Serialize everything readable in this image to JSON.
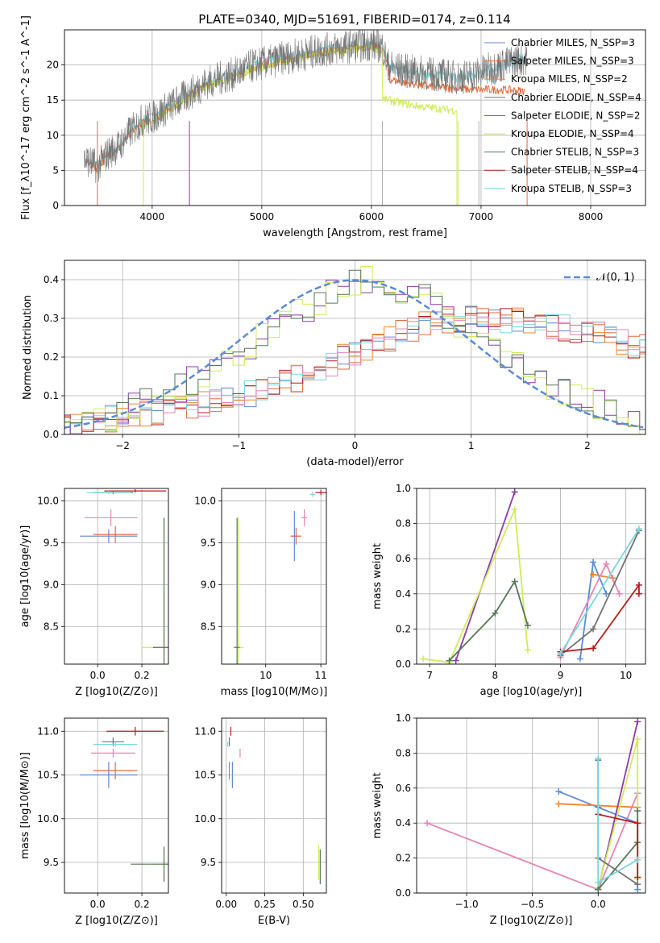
{
  "title": "PLATE=0340, MJD=51691, FIBERID=0174, z=0.114",
  "models": [
    {
      "label": "Chabrier MILES, N_SSP=3",
      "color": "#5b8ad6"
    },
    {
      "label": "Salpeter MILES, N_SSP=3",
      "color": "#e06b3a"
    },
    {
      "label": "Kroupa MILES, N_SSP=2",
      "color": "#f0862a"
    },
    {
      "label": "Chabrier ELODIE, N_SSP=4",
      "color": "#727272"
    },
    {
      "label": "Salpeter ELODIE, N_SSP=2",
      "color": "#8e3aa8"
    },
    {
      "label": "Kroupa ELODIE, N_SSP=4",
      "color": "#cfec57"
    },
    {
      "label": "Chabrier STELIB, N_SSP=3",
      "color": "#55775a"
    },
    {
      "label": "Salpeter STELIB, N_SSP=4",
      "color": "#b71c1c"
    },
    {
      "label": "Kroupa STELIB, N_SSP=3",
      "color": "#79d6de"
    }
  ],
  "extra_color_pink": "#e585b5",
  "chart_data": [
    {
      "id": "spectrum",
      "type": "line",
      "xlabel": "wavelength [Angstrom, rest frame]",
      "ylabel": "Flux [f_λ10^-17 erg cm^-2 s^-1 A^-1]",
      "xlim": [
        3200,
        8500
      ],
      "ylim": [
        0,
        25
      ],
      "xticks": [
        4000,
        5000,
        6000,
        7000,
        8000
      ],
      "yticks": [
        0,
        5,
        10,
        15,
        20
      ],
      "grid": true,
      "legend": "upper right",
      "observed_continuum": {
        "x": [
          3400,
          3500,
          3600,
          3700,
          3800,
          3900,
          4000,
          4100,
          4200,
          4300,
          4400,
          4500,
          4600,
          4700,
          4800,
          4900,
          5000,
          5100,
          5200,
          5300,
          5400,
          5500,
          5600,
          5700,
          5800,
          5900,
          6000,
          6100,
          6150,
          6200,
          6300,
          6400,
          6500,
          6600,
          6700,
          6800,
          6900,
          7000,
          7100,
          7200,
          7300,
          7400
        ],
        "y": [
          6.5,
          5.5,
          7.5,
          8.5,
          10.5,
          12.0,
          12.5,
          13.5,
          14.5,
          15.5,
          16.5,
          17.5,
          18.0,
          18.5,
          19.0,
          19.8,
          20.2,
          20.5,
          21.0,
          21.3,
          21.6,
          22.0,
          22.2,
          22.4,
          22.6,
          22.8,
          23.0,
          22.6,
          20.0,
          19.5,
          19.2,
          19.0,
          18.8,
          18.6,
          18.4,
          18.2,
          18.5,
          19.0,
          19.5,
          20.0,
          20.5,
          21.0
        ]
      },
      "model_continuum_red": {
        "x": [
          6150,
          6300,
          6500,
          6700,
          6900,
          7100,
          7300,
          7400
        ],
        "y": [
          18.0,
          17.5,
          17.0,
          16.8,
          16.5,
          16.5,
          16.4,
          16.3
        ]
      },
      "model_continuum_elodie": {
        "x": [
          6100,
          6200,
          6400,
          6600,
          6800
        ],
        "y": [
          15.2,
          14.8,
          14.2,
          13.8,
          13.5
        ]
      }
    },
    {
      "id": "residual-hist",
      "type": "line",
      "xlabel": "(data-model)/error",
      "ylabel": "Normed distribution",
      "xlim": [
        -2.5,
        2.5
      ],
      "ylim": [
        0,
        0.45
      ],
      "xticks": [
        -2,
        -1,
        0,
        1,
        2
      ],
      "yticks": [
        0.0,
        0.1,
        0.2,
        0.3,
        0.4
      ],
      "grid": true,
      "legend_label": "𝒩(0, 1)",
      "legend": "upper right",
      "gaussian": {
        "mean": 0,
        "sigma": 1
      },
      "narrow_hist_centers": [
        -2.5,
        -2.0,
        -1.5,
        -1.0,
        -0.5,
        0.0,
        0.5,
        1.0,
        1.5,
        2.0,
        2.5
      ],
      "narrow_hist_values": [
        0.02,
        0.06,
        0.13,
        0.22,
        0.32,
        0.4,
        0.36,
        0.26,
        0.14,
        0.08,
        0.03
      ],
      "wide_hist_centers": [
        -2.5,
        -2.0,
        -1.5,
        -1.0,
        -0.5,
        0.0,
        0.5,
        1.0,
        1.5,
        2.0,
        2.5
      ],
      "wide_hist_values": [
        0.02,
        0.05,
        0.07,
        0.1,
        0.15,
        0.22,
        0.28,
        0.3,
        0.29,
        0.26,
        0.22
      ]
    },
    {
      "id": "age-vs-Z",
      "type": "scatter",
      "xlabel": "Z [log10(Z/Z⊙)]",
      "ylabel": "age  [log10(age/yr)]",
      "xlim": [
        -0.15,
        0.32
      ],
      "ylim": [
        8.05,
        10.15
      ],
      "xticks": [
        0.0,
        0.2
      ],
      "yticks": [
        8.5,
        9.0,
        9.5,
        10.0
      ],
      "points": [
        {
          "model": 0,
          "x": 0.05,
          "y": 9.58,
          "xerr": 0.13,
          "yerr": 0.08
        },
        {
          "model": 1,
          "x": 0.08,
          "y": 9.6,
          "xerr": 0.1,
          "yerr": 0.1
        },
        {
          "model": 3,
          "x": 0.07,
          "y": 10.1,
          "xerr": 0.09,
          "yerr": 0.02
        },
        {
          "model": 7,
          "x": 0.17,
          "y": 10.12,
          "xerr": 0.14,
          "yerr": 0.02
        },
        {
          "model": 8,
          "x": 0.05,
          "y": 10.1,
          "xerr": 0.1,
          "yerr": 0.02
        },
        {
          "model": 5,
          "x": 0.3,
          "y": 8.25,
          "xerr": 0.1,
          "yerr": 1.55
        },
        {
          "model": 6,
          "x": 0.3,
          "y": 8.25,
          "xerr": 0.05,
          "yerr": 1.55
        },
        {
          "model": -1,
          "x": 0.06,
          "y": 9.8,
          "xerr": 0.12,
          "yerr": 0.1
        }
      ]
    },
    {
      "id": "age-vs-mass",
      "type": "scatter",
      "xlabel": "mass [log10(M/M⊙)]",
      "ylabel": "",
      "xlim": [
        9.2,
        11.1
      ],
      "ylim": [
        8.05,
        10.15
      ],
      "xticks": [
        10,
        11
      ],
      "yticks": [
        8.5,
        9.0,
        9.5,
        10.0
      ],
      "points": [
        {
          "model": 0,
          "x": 10.52,
          "y": 9.58,
          "xerr": 0.05,
          "yerr": 0.3
        },
        {
          "model": 1,
          "x": 10.55,
          "y": 9.58,
          "xerr": 0.1,
          "yerr": 0.1
        },
        {
          "model": 7,
          "x": 11.0,
          "y": 10.1,
          "xerr": 0.1,
          "yerr": 0.03
        },
        {
          "model": 8,
          "x": 10.85,
          "y": 10.08,
          "xerr": 0.05,
          "yerr": 0.03
        },
        {
          "model": -1,
          "x": 10.7,
          "y": 9.8,
          "xerr": 0.05,
          "yerr": 0.1
        },
        {
          "model": 5,
          "x": 9.5,
          "y": 8.25,
          "xerr": 0.1,
          "yerr": 1.55
        },
        {
          "model": 6,
          "x": 9.48,
          "y": 8.25,
          "xerr": 0.05,
          "yerr": 1.55
        }
      ]
    },
    {
      "id": "mass-weight-vs-age",
      "type": "line",
      "xlabel": "age  [log10(age/yr)]",
      "ylabel": "mass weight",
      "xlim": [
        6.8,
        10.3
      ],
      "ylim": [
        0,
        1
      ],
      "xticks": [
        7,
        8,
        9,
        10
      ],
      "yticks": [
        0.0,
        0.2,
        0.4,
        0.6,
        0.8,
        1.0
      ],
      "series": [
        {
          "model": 4,
          "x": [
            7.4,
            8.3
          ],
          "y": [
            0.02,
            0.98
          ]
        },
        {
          "model": 5,
          "x": [
            6.9,
            7.3,
            8.3,
            8.5
          ],
          "y": [
            0.03,
            0.01,
            0.88,
            0.08
          ]
        },
        {
          "model": 6,
          "x": [
            7.3,
            8.0,
            8.3,
            8.5
          ],
          "y": [
            0.02,
            0.29,
            0.47,
            0.22
          ]
        },
        {
          "model": 0,
          "x": [
            9.3,
            9.5,
            9.7
          ],
          "y": [
            0.03,
            0.58,
            0.4
          ]
        },
        {
          "model": 2,
          "x": [
            9.5,
            9.8
          ],
          "y": [
            0.51,
            0.49
          ]
        },
        {
          "model": -1,
          "x": [
            9.0,
            9.7,
            9.9
          ],
          "y": [
            0.04,
            0.57,
            0.4
          ]
        },
        {
          "model": 3,
          "x": [
            9.0,
            9.5,
            10.2
          ],
          "y": [
            0.05,
            0.2,
            0.76
          ]
        },
        {
          "model": 7,
          "x": [
            9.0,
            9.5,
            10.2,
            10.2
          ],
          "y": [
            0.07,
            0.09,
            0.45,
            0.4
          ]
        },
        {
          "model": 8,
          "x": [
            9.0,
            10.2
          ],
          "y": [
            0.06,
            0.77
          ]
        }
      ]
    },
    {
      "id": "mass-vs-Z",
      "type": "scatter",
      "xlabel": "Z [log10(Z/Z⊙)]",
      "ylabel": "mass [log10(M/M⊙)]",
      "xlim": [
        -0.15,
        0.32
      ],
      "ylim": [
        9.15,
        11.15
      ],
      "xticks": [
        0.0,
        0.2
      ],
      "yticks": [
        9.5,
        10.0,
        10.5,
        11.0
      ],
      "points": [
        {
          "model": 0,
          "x": 0.05,
          "y": 10.5,
          "xerr": 0.13,
          "yerr": 0.15
        },
        {
          "model": 1,
          "x": 0.08,
          "y": 10.55,
          "xerr": 0.1,
          "yerr": 0.1
        },
        {
          "model": 3,
          "x": 0.07,
          "y": 10.88,
          "xerr": 0.05,
          "yerr": 0.05
        },
        {
          "model": 7,
          "x": 0.17,
          "y": 11.0,
          "xerr": 0.13,
          "yerr": 0.05
        },
        {
          "model": 8,
          "x": 0.08,
          "y": 10.85,
          "xerr": 0.1,
          "yerr": 0.03
        },
        {
          "model": -1,
          "x": 0.07,
          "y": 10.75,
          "xerr": 0.1,
          "yerr": 0.05
        },
        {
          "model": 5,
          "x": 0.3,
          "y": 9.48,
          "xerr": 0.05,
          "yerr": 0.18
        },
        {
          "model": 6,
          "x": 0.3,
          "y": 9.48,
          "xerr": 0.15,
          "yerr": 0.2
        }
      ]
    },
    {
      "id": "mass-vs-ebv",
      "type": "scatter",
      "xlabel": "E(B-V)",
      "ylabel": "",
      "xlim": [
        -0.03,
        0.65
      ],
      "ylim": [
        9.15,
        11.15
      ],
      "xticks": [
        0.0,
        0.25,
        0.5
      ],
      "yticks": [
        9.5,
        10.0,
        10.5,
        11.0
      ],
      "points": [
        {
          "model": 0,
          "x": 0.04,
          "y": 10.5,
          "xerr": 0.0,
          "yerr": 0.15
        },
        {
          "model": 1,
          "x": 0.02,
          "y": 10.55,
          "xerr": 0.0,
          "yerr": 0.1
        },
        {
          "model": 3,
          "x": 0.02,
          "y": 10.88,
          "xerr": 0.0,
          "yerr": 0.05
        },
        {
          "model": 7,
          "x": 0.03,
          "y": 11.0,
          "xerr": 0.0,
          "yerr": 0.05
        },
        {
          "model": 8,
          "x": 0.01,
          "y": 10.85,
          "xerr": 0.0,
          "yerr": 0.03
        },
        {
          "model": -1,
          "x": 0.09,
          "y": 10.75,
          "xerr": 0.0,
          "yerr": 0.05
        },
        {
          "model": 5,
          "x": 0.6,
          "y": 9.5,
          "xerr": 0.0,
          "yerr": 0.2
        },
        {
          "model": 6,
          "x": 0.61,
          "y": 9.45,
          "xerr": 0.0,
          "yerr": 0.2
        }
      ]
    },
    {
      "id": "mass-weight-vs-Z",
      "type": "line",
      "xlabel": "Z [log10(Z/Z⊙)]",
      "ylabel": "mass weight",
      "xlim": [
        -1.38,
        0.36
      ],
      "ylim": [
        0,
        1
      ],
      "xticks": [
        -1.0,
        -0.5,
        0.0
      ],
      "yticks": [
        0.0,
        0.2,
        0.4,
        0.6,
        0.8,
        1.0
      ],
      "series": [
        {
          "model": -1,
          "x": [
            -1.3,
            0.0,
            0.3
          ],
          "y": [
            0.4,
            0.02,
            0.57
          ]
        },
        {
          "model": 0,
          "x": [
            -0.3,
            0.0,
            0.3,
            0.3
          ],
          "y": [
            0.58,
            0.49,
            0.4,
            0.02
          ]
        },
        {
          "model": 2,
          "x": [
            -0.3,
            0.3
          ],
          "y": [
            0.51,
            0.49
          ]
        },
        {
          "model": 4,
          "x": [
            0.0,
            0.3
          ],
          "y": [
            0.02,
            0.98
          ]
        },
        {
          "model": 5,
          "x": [
            0.0,
            0.3,
            0.3
          ],
          "y": [
            0.03,
            0.88,
            0.08
          ]
        },
        {
          "model": 6,
          "x": [
            0.0,
            0.3,
            0.3
          ],
          "y": [
            0.02,
            0.29,
            0.47
          ]
        },
        {
          "model": 3,
          "x": [
            0.0,
            0.0,
            0.3
          ],
          "y": [
            0.76,
            0.2,
            0.05
          ]
        },
        {
          "model": 7,
          "x": [
            0.0,
            0.3,
            0.3
          ],
          "y": [
            0.45,
            0.4,
            0.09
          ]
        },
        {
          "model": 8,
          "x": [
            0.0,
            0.0,
            0.3
          ],
          "y": [
            0.77,
            0.06,
            0.19
          ]
        }
      ]
    }
  ]
}
